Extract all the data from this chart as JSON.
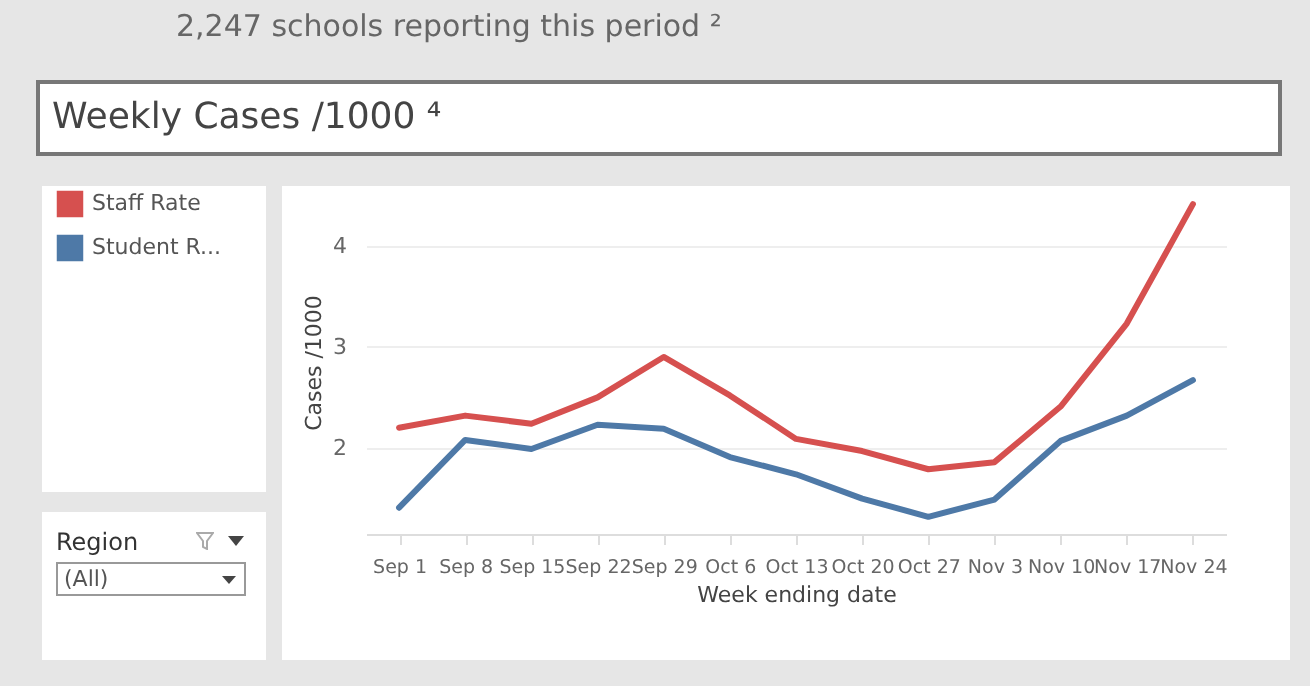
{
  "chart_data": {
    "type": "line",
    "title": "Weekly Cases /1000 ⁴",
    "xlabel": "Week ending date",
    "ylabel": "Cases /1000",
    "annotations": [
      "2,247 schools reporting this period ²",
      "Region",
      "(All)"
    ],
    "categories": [
      "Sep 1",
      "Sep 8",
      "Sep 15",
      "Sep 22",
      "Sep 29",
      "Oct 6",
      "Oct 13",
      "Oct 20",
      "Oct 27",
      "Nov 3",
      "Nov 10",
      "Nov 17",
      "Nov 24"
    ],
    "series": [
      {
        "name": "Staff Rate",
        "color": "#d6504f",
        "values": [
          2.2,
          2.32,
          2.24,
          2.5,
          2.9,
          2.52,
          2.09,
          1.97,
          1.79,
          1.86,
          2.41,
          3.23,
          4.41
        ]
      },
      {
        "name": "Student R...",
        "color": "#4e79a7",
        "values": [
          1.41,
          2.08,
          1.99,
          2.23,
          2.19,
          1.91,
          1.74,
          1.5,
          1.32,
          1.49,
          2.07,
          2.32,
          2.67
        ]
      }
    ],
    "ylim": [
      1.15,
      4.55
    ],
    "yticks": [
      2,
      3,
      4
    ],
    "grid": "y",
    "legend": "left",
    "marker": "none",
    "line_style": "solid"
  }
}
